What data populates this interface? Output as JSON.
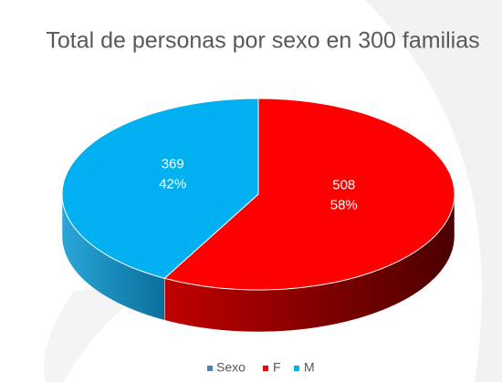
{
  "chart_data": {
    "type": "pie3d",
    "title": "Total de personas por sexo en 300 familias",
    "series_name": "Sexo",
    "series_color": "#4f81bd",
    "categories": [
      "F",
      "M"
    ],
    "values": [
      508,
      369
    ],
    "percent": [
      58,
      42
    ],
    "percent_labels": [
      "58%",
      "42%"
    ],
    "colors": [
      "#ff0000",
      "#00b0f0"
    ],
    "side_colors": [
      "#7a0000",
      "#0a78a8"
    ]
  }
}
